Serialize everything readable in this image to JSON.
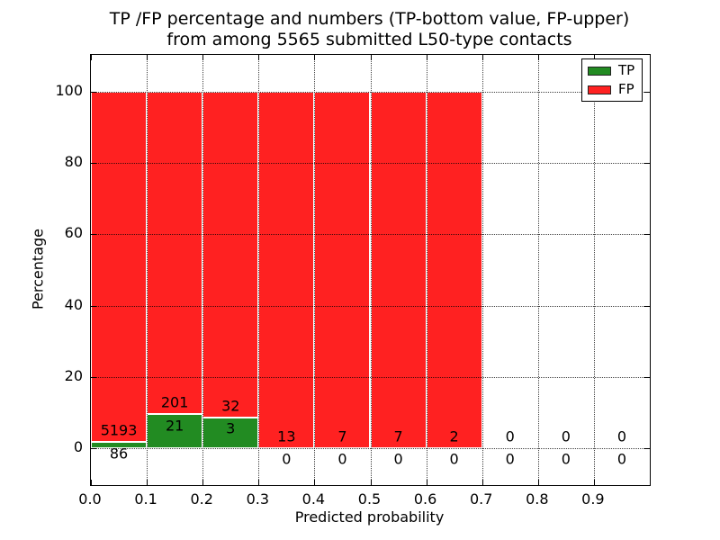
{
  "title": {
    "line1": "TP /FP percentage and numbers (TP-bottom value, FP-upper)",
    "line2": "from among 5565 submitted L50-type contacts"
  },
  "axes": {
    "xlabel": "Predicted probability",
    "ylabel": "Percentage",
    "xtick_values": [
      0.0,
      0.1,
      0.2,
      0.3,
      0.4,
      0.5,
      0.6,
      0.7,
      0.8,
      0.9
    ],
    "xtick_labels": [
      "0.0",
      "0.1",
      "0.2",
      "0.3",
      "0.4",
      "0.5",
      "0.6",
      "0.7",
      "0.8",
      "0.9"
    ],
    "ytick_values": [
      0,
      20,
      40,
      60,
      80,
      100
    ],
    "ytick_labels": [
      "0",
      "20",
      "40",
      "60",
      "80",
      "100"
    ],
    "xlim": [
      0.0,
      1.0
    ],
    "ylim": [
      -10.4,
      110.4
    ],
    "grid": "dotted"
  },
  "legend": {
    "position": "upper-right",
    "items": [
      {
        "label": "TP",
        "color": "#228b22"
      },
      {
        "label": "FP",
        "color": "#ff2121"
      }
    ]
  },
  "chart_data": {
    "type": "bar",
    "stacked": true,
    "title": "TP /FP percentage and numbers (TP-bottom value, FP-upper) from among 5565 submitted L50-type contacts",
    "xlabel": "Predicted probability",
    "ylabel": "Percentage",
    "unit": "percent",
    "colors": {
      "tp": "#228b22",
      "fp": "#ff2121"
    },
    "series": [
      {
        "name": "TP",
        "color": "#228b22",
        "counts": [
          86,
          21,
          3,
          0,
          0,
          0,
          0,
          0,
          0,
          0
        ]
      },
      {
        "name": "FP",
        "color": "#ff2121",
        "counts": [
          5193,
          201,
          32,
          13,
          7,
          7,
          2,
          0,
          0,
          0
        ]
      }
    ],
    "bins": [
      {
        "x0": 0.0,
        "x1": 0.1,
        "tp": 86,
        "fp": 5193
      },
      {
        "x0": 0.1,
        "x1": 0.2,
        "tp": 21,
        "fp": 201
      },
      {
        "x0": 0.2,
        "x1": 0.3,
        "tp": 3,
        "fp": 32
      },
      {
        "x0": 0.3,
        "x1": 0.4,
        "tp": 0,
        "fp": 13
      },
      {
        "x0": 0.4,
        "x1": 0.5,
        "tp": 0,
        "fp": 7
      },
      {
        "x0": 0.5,
        "x1": 0.6,
        "tp": 0,
        "fp": 7
      },
      {
        "x0": 0.6,
        "x1": 0.7,
        "tp": 0,
        "fp": 2
      },
      {
        "x0": 0.7,
        "x1": 0.8,
        "tp": 0,
        "fp": 0
      },
      {
        "x0": 0.8,
        "x1": 0.9,
        "tp": 0,
        "fp": 0
      },
      {
        "x0": 0.9,
        "x1": 1.0,
        "tp": 0,
        "fp": 0
      }
    ],
    "total_submitted": 5565
  }
}
